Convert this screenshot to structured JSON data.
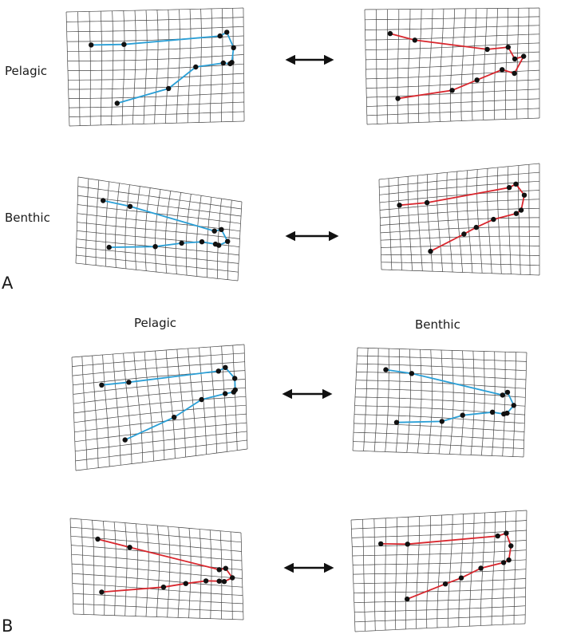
{
  "panel_a": {
    "letter": "A",
    "row_labels": [
      "Pelagic",
      "Benthic"
    ]
  },
  "panel_b": {
    "letter": "B",
    "col_labels": [
      "Pelagic",
      "Benthic"
    ]
  },
  "colors": {
    "blue_outline": "#2a9fd6",
    "red_outline": "#d8262d",
    "magenta_outline": "#d62a6e",
    "grid_line": "#444444",
    "landmark": "#111111",
    "arrow": "#111111"
  },
  "grids": [
    {
      "id": "a-pelagic-left",
      "color": "blue_outline",
      "wave": 1
    },
    {
      "id": "a-pelagic-right",
      "color": "red_outline",
      "wave": 2
    },
    {
      "id": "a-benthic-left",
      "color": "blue_outline",
      "wave": 3
    },
    {
      "id": "a-benthic-right",
      "color": "red_outline",
      "wave": 4
    },
    {
      "id": "b-top-left",
      "color": "blue_outline",
      "wave": 5
    },
    {
      "id": "b-top-right",
      "color": "blue_outline",
      "wave": 6
    },
    {
      "id": "b-bottom-left",
      "color": "red_outline",
      "wave": 7
    },
    {
      "id": "b-bottom-right",
      "color": "red_outline",
      "wave": 8
    }
  ]
}
